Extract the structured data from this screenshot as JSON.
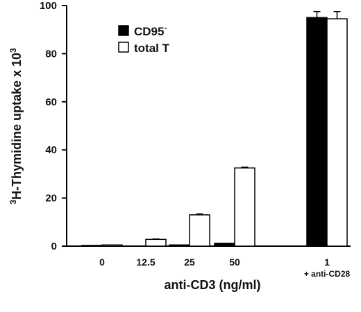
{
  "chart_data": {
    "type": "bar",
    "categories": [
      "0",
      "12.5",
      "25",
      "50",
      "1"
    ],
    "category_sublabels": [
      "",
      "",
      "",
      "",
      "+ anti-CD28"
    ],
    "series": [
      {
        "name": "CD95",
        "name_superscript": "-",
        "color": "#000000",
        "values": [
          0.3,
          0,
          0.5,
          1.2,
          95
        ]
      },
      {
        "name": "total T",
        "name_superscript": "",
        "color": "#ffffff",
        "values": [
          0.5,
          2.8,
          13,
          32.5,
          94.5
        ]
      }
    ],
    "error_bars": [
      [
        0,
        0,
        0,
        0,
        2.5
      ],
      [
        0,
        0.2,
        0.4,
        0.3,
        3
      ]
    ],
    "xlabel": "anti-CD3 (ng/ml)",
    "ylabel": {
      "prefix": "3",
      "main": "H-Thymidine uptake x 10",
      "exponent": "3"
    },
    "ylim": [
      0,
      100
    ],
    "yticks": [
      0,
      20,
      40,
      60,
      80,
      100
    ],
    "grid": false,
    "legend_position": "top-left"
  }
}
